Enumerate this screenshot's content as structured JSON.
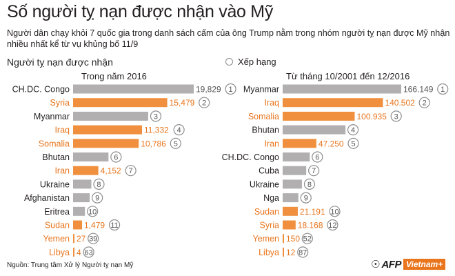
{
  "title": "Số người tỵ nạn được nhận vào Mỹ",
  "subtitle": "Người dân chạy khỏi 7 quốc gia trong danh sách cấm của ông  Trump nằm trong nhóm người tỵ nạn được Mỹ nhận nhiều nhất kể từ vụ khủng bố 11/9",
  "section_label": "Người tỵ nạn được nhận",
  "legend_label": "Xếp hạng",
  "source": "Nguồn: Trung tâm Xử lý Người tỵ nạn Mỹ",
  "brand": {
    "afp": "AFP",
    "vietnamplus": "Vietnam+"
  },
  "colors": {
    "gray": "#b1afaf",
    "orange": "#f0903e",
    "orange_text": "#e9751d",
    "text": "#231f20",
    "ring": "#8c8c8c"
  },
  "chart_data": [
    {
      "type": "bar",
      "title": "Trong năm 2016",
      "categories": [
        "CH.DC. Congo",
        "Syria",
        "Myanmar",
        "Iraq",
        "Somalia",
        "Bhutan",
        "Iran",
        "Ukraine",
        "Afghanistan",
        "Eritrea",
        "Sudan",
        "Yemen",
        "Libya"
      ],
      "values": [
        19829,
        15479,
        12347,
        11332,
        10786,
        5817,
        4152,
        3000,
        2737,
        1949,
        1479,
        27,
        4
      ],
      "value_labels": [
        "19,829",
        "15,479",
        "",
        "11,332",
        "10,786",
        "",
        "4,152",
        "",
        "",
        "",
        "1,479",
        "27",
        "4"
      ],
      "ranks": [
        "1",
        "2",
        "3",
        "4",
        "5",
        "6",
        "7",
        "8",
        "9",
        "10",
        "11",
        "39",
        "63"
      ],
      "banned": [
        false,
        true,
        false,
        true,
        true,
        false,
        true,
        false,
        false,
        false,
        true,
        true,
        true
      ]
    },
    {
      "type": "bar",
      "title": "Từ tháng 10/2001 đến 12/2016",
      "categories": [
        "Myanmar",
        "Iraq",
        "Somalia",
        "Bhutan",
        "Iran",
        "CH.DC. Congo",
        "Cuba",
        "Ukraine",
        "Nga",
        "Sudan",
        "Syria",
        "Yemen",
        "Libya"
      ],
      "values": [
        166149,
        140502,
        100935,
        88000,
        47250,
        38000,
        33000,
        27000,
        22000,
        21191,
        18168,
        150,
        12
      ],
      "value_labels": [
        "166.149",
        "140.502",
        "100.935",
        "",
        "47.250",
        "",
        "",
        "",
        "",
        "21.191",
        "18.168",
        "150",
        "12"
      ],
      "ranks": [
        "1",
        "2",
        "3",
        "4",
        "5",
        "6",
        "7",
        "8",
        "9",
        "10",
        "12",
        "52",
        "87"
      ],
      "banned": [
        false,
        true,
        true,
        false,
        true,
        false,
        false,
        false,
        false,
        true,
        true,
        true,
        true
      ]
    }
  ]
}
